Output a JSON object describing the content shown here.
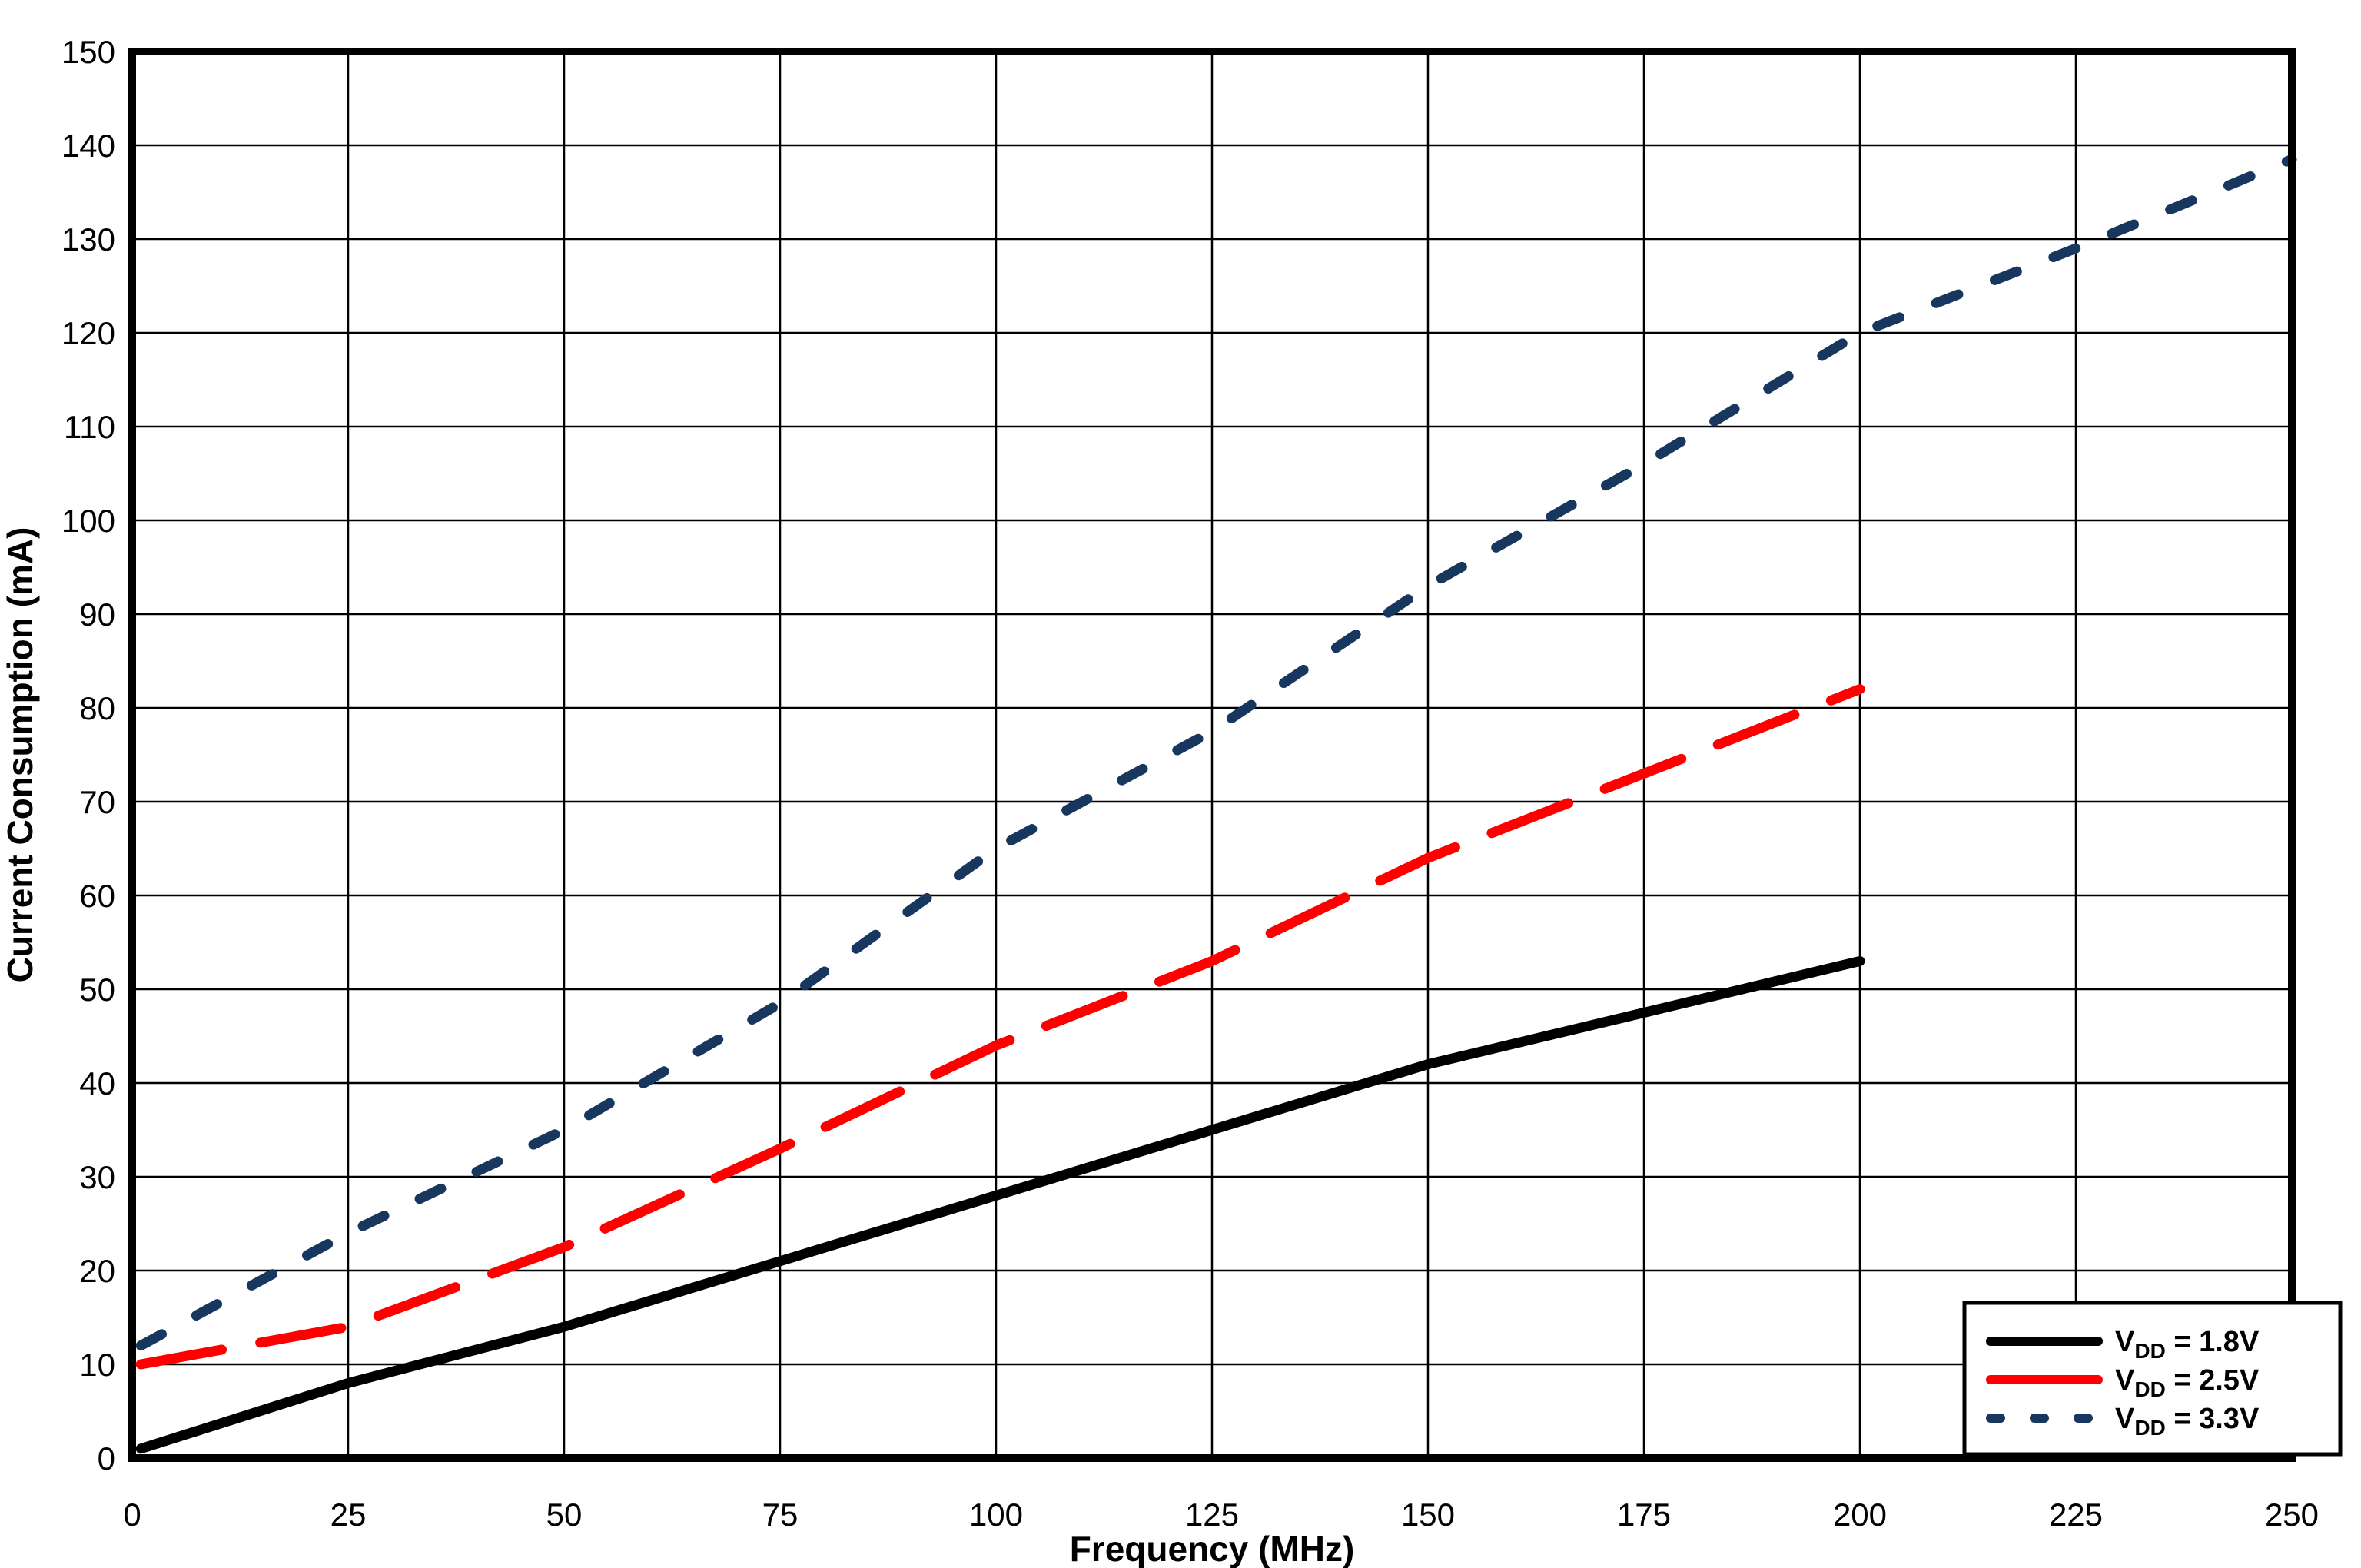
{
  "chart_data": {
    "type": "line",
    "title": "",
    "xlabel": "Frequency (MHz)",
    "ylabel": "Current Consumption (mA)",
    "xlim": [
      0,
      250
    ],
    "ylim": [
      0,
      150
    ],
    "xticks": [
      0,
      25,
      50,
      75,
      100,
      125,
      150,
      175,
      200,
      225,
      250
    ],
    "yticks": [
      0,
      10,
      20,
      30,
      40,
      50,
      60,
      70,
      80,
      90,
      100,
      110,
      120,
      130,
      140,
      150
    ],
    "grid": true,
    "legend_position": "bottom-right",
    "colors": {
      "background": "#ffffff",
      "frame": "#000000",
      "grid": "#000000"
    },
    "series": [
      {
        "name": "VDD = 1.8V",
        "legend": {
          "v": "V",
          "sub": "DD",
          "rest": " = 1.8V"
        },
        "color": "#000000",
        "dash": "solid",
        "x": [
          1,
          25,
          50,
          75,
          100,
          125,
          150,
          175,
          200
        ],
        "y": [
          1,
          8,
          14,
          21,
          28,
          35,
          42,
          47.5,
          53
        ]
      },
      {
        "name": "VDD = 2.5V",
        "legend": {
          "v": "V",
          "sub": "DD",
          "rest": " = 2.5V"
        },
        "color": "#ff0000",
        "dash": "long-dash",
        "x": [
          1,
          25,
          50,
          75,
          100,
          125,
          150,
          175,
          200
        ],
        "y": [
          10,
          14,
          22.5,
          33,
          44,
          53,
          64,
          73,
          82
        ]
      },
      {
        "name": "VDD = 3.3V",
        "legend": {
          "v": "V",
          "sub": "DD",
          "rest": " = 3.3V"
        },
        "color": "#17375e",
        "dash": "short-dash",
        "x": [
          1,
          25,
          50,
          75,
          100,
          125,
          150,
          175,
          200,
          225,
          250
        ],
        "y": [
          12,
          24,
          35,
          48.5,
          65,
          77.5,
          93,
          106,
          120,
          129,
          138.5
        ]
      }
    ]
  }
}
